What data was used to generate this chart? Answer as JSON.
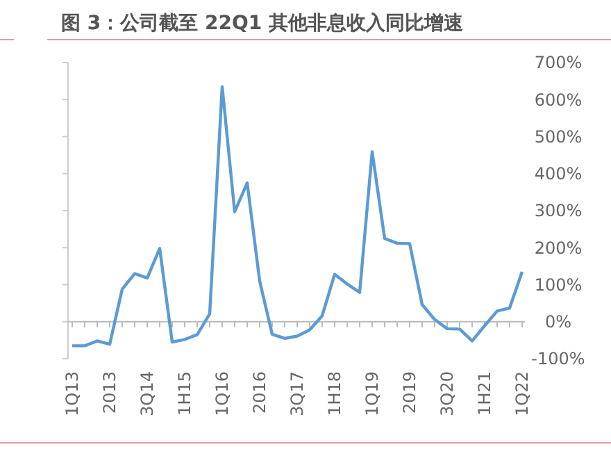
{
  "chart_data": {
    "type": "line",
    "title": "图 3：公司截至 22Q1 其他非息收入同比增速",
    "categories": [
      "1Q13",
      null,
      null,
      "2013",
      null,
      null,
      "3Q14",
      null,
      null,
      "1H15",
      null,
      null,
      "1Q16",
      null,
      null,
      "2016",
      null,
      null,
      "3Q17",
      null,
      null,
      "1H18",
      null,
      null,
      "1Q19",
      null,
      null,
      "2019",
      null,
      null,
      "3Q20",
      null,
      null,
      "1H21",
      null,
      null,
      "1Q22"
    ],
    "series": [
      {
        "color": "#5b9bd5",
        "values": [
          -65,
          -65,
          -52,
          -61,
          88,
          130,
          118,
          198,
          -55,
          -48,
          -35,
          21,
          635,
          297,
          375,
          110,
          -34,
          -45,
          -39,
          -22,
          16,
          128,
          102,
          79,
          459,
          225,
          212,
          211,
          46,
          6,
          -19,
          -20,
          -52,
          -11,
          29,
          37,
          135
        ]
      }
    ],
    "ylim": [
      -100,
      700
    ],
    "yticks": [
      {
        "value": -100,
        "label": "-100%"
      },
      {
        "value": 0,
        "label": "0%"
      },
      {
        "value": 100,
        "label": "100%"
      },
      {
        "value": 200,
        "label": "200%"
      },
      {
        "value": 300,
        "label": "300%"
      },
      {
        "value": 400,
        "label": "400%"
      },
      {
        "value": 500,
        "label": "500%"
      },
      {
        "value": 600,
        "label": "600%"
      },
      {
        "value": 700,
        "label": "700%"
      }
    ],
    "marker": "none",
    "line_style": "solid"
  }
}
